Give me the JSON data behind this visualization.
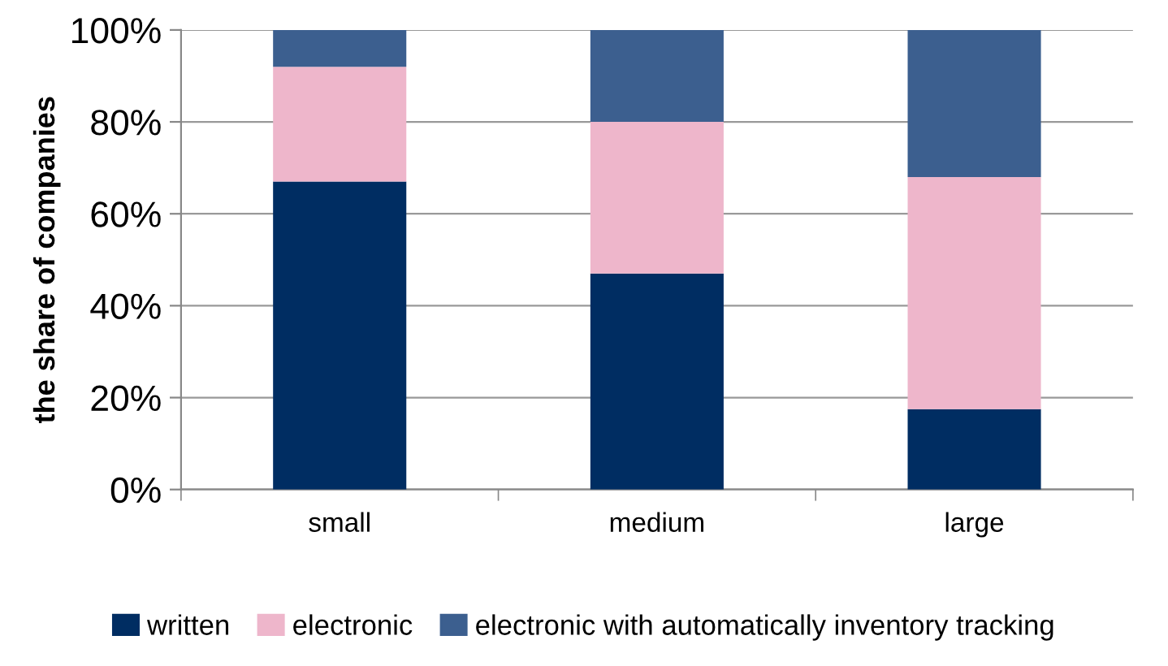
{
  "chart_data": {
    "type": "bar",
    "stacked": true,
    "ylabel": "the share of companies",
    "categories": [
      "small",
      "medium",
      "large"
    ],
    "series": [
      {
        "name": "written",
        "color": "#002d62",
        "values": [
          67,
          47,
          17.5
        ]
      },
      {
        "name": "electronic",
        "color": "#eeb6cb",
        "values": [
          25,
          33,
          50.5
        ]
      },
      {
        "name": "electronic with automatically inventory tracking",
        "color": "#3c5f8f",
        "values": [
          8,
          20,
          32
        ]
      }
    ],
    "ylim": [
      0,
      100
    ],
    "yticks": [
      {
        "value": 0,
        "label": "0%"
      },
      {
        "value": 20,
        "label": "20%"
      },
      {
        "value": 40,
        "label": "40%"
      },
      {
        "value": 60,
        "label": "60%"
      },
      {
        "value": 80,
        "label": "80%"
      },
      {
        "value": 100,
        "label": "100%"
      }
    ],
    "grid": "y",
    "legend": "bottom"
  }
}
